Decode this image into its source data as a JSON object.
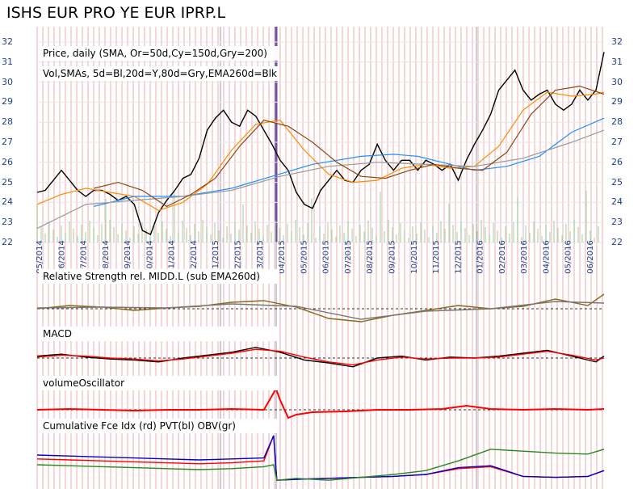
{
  "chart_data": [
    {
      "type": "line",
      "title": "ISHS EUR PRO YE EUR IPRP.L",
      "panel_label": "Price, daily (SMA, Or=50d,Cy=150d,Gry=200)",
      "volume_label": "Vol,SMAs, 5d=Bl,20d=Y,80d=Gry,EMA260d=Blk",
      "ylim": [
        22,
        32
      ],
      "yticks": [
        22,
        23,
        24,
        25,
        26,
        27,
        28,
        29,
        30,
        31,
        32
      ],
      "xtick_labels": [
        "05/2014",
        "06/2014",
        "07/2014",
        "08/2014",
        "09/2014",
        "10/2014",
        "11/2014",
        "12/2014",
        "01/2015",
        "02/2015",
        "03/2015",
        "04/2015",
        "05/2015",
        "06/2015",
        "07/2015",
        "08/2015",
        "09/2015",
        "10/2015",
        "11/2015",
        "12/2015",
        "01/2016",
        "02/2016",
        "03/2016",
        "04/2016",
        "05/2016",
        "06/2016"
      ],
      "series": [
        {
          "key": "price",
          "color": "#000000",
          "x": [
            0,
            10,
            20,
            30,
            40,
            50,
            60,
            70,
            80,
            90,
            100,
            110,
            120,
            130,
            140,
            150,
            160,
            170,
            180,
            190,
            200,
            210,
            220,
            230,
            240,
            250,
            260,
            270,
            280,
            290,
            300,
            310,
            320,
            330,
            340,
            350,
            360,
            370,
            380,
            390,
            400,
            410,
            420,
            430,
            440,
            450,
            460,
            470,
            480,
            490,
            500,
            510,
            520,
            530,
            540,
            550,
            560,
            570,
            580,
            590,
            600,
            610,
            620,
            630,
            640,
            650,
            660,
            670,
            680,
            690,
            700
          ],
          "y": [
            24.5,
            24.6,
            25.1,
            25.6,
            25.1,
            24.6,
            24.3,
            24.6,
            24.6,
            24.4,
            24.1,
            24.3,
            23.9,
            22.6,
            22.4,
            23.5,
            24.1,
            24.6,
            25.2,
            25.4,
            26.2,
            27.6,
            28.2,
            28.6,
            28.0,
            27.8,
            28.6,
            28.3,
            27.6,
            26.9,
            26.1,
            25.6,
            24.5,
            23.9,
            23.7,
            24.6,
            25.1,
            25.6,
            25.1,
            25.0,
            25.6,
            25.9,
            26.9,
            26.1,
            25.6,
            26.1,
            26.1,
            25.6,
            26.1,
            25.9,
            25.6,
            25.9,
            25.1,
            26.1,
            26.9,
            27.6,
            28.4,
            29.6,
            30.1,
            30.6,
            29.6,
            29.1,
            29.4,
            29.6,
            28.9,
            28.6,
            28.9,
            29.6,
            29.1,
            29.6,
            31.5
          ]
        },
        {
          "key": "sma50",
          "color": "#ff8c00",
          "x": [
            0,
            30,
            60,
            90,
            120,
            150,
            180,
            210,
            240,
            270,
            300,
            330,
            360,
            390,
            420,
            450,
            480,
            510,
            540,
            570,
            600,
            630,
            660,
            690,
            700
          ],
          "y": [
            23.9,
            24.4,
            24.7,
            24.5,
            24.3,
            23.6,
            24.0,
            24.9,
            26.6,
            27.9,
            28.1,
            26.6,
            25.4,
            25.0,
            25.1,
            25.7,
            25.9,
            25.7,
            25.8,
            26.8,
            28.6,
            29.5,
            29.3,
            29.4,
            29.5
          ]
        },
        {
          "key": "sma150",
          "color": "#1e90ff",
          "x": [
            70,
            120,
            180,
            240,
            290,
            340,
            400,
            440,
            470,
            500,
            540,
            580,
            620,
            660,
            700
          ],
          "y": [
            23.8,
            24.3,
            24.3,
            24.7,
            25.3,
            25.9,
            26.3,
            26.4,
            26.3,
            26.0,
            25.6,
            25.8,
            26.3,
            27.5,
            28.2
          ]
        },
        {
          "key": "sma200",
          "color": "#999999",
          "x": [
            0,
            60,
            120,
            180,
            240,
            300,
            360,
            420,
            480,
            540,
            600,
            660,
            700
          ],
          "y": [
            22.7,
            23.9,
            24.1,
            24.3,
            24.6,
            25.3,
            25.8,
            26.0,
            25.9,
            25.8,
            26.2,
            27.0,
            27.6
          ]
        },
        {
          "key": "sma_brown",
          "color": "#8b4513",
          "x": [
            70,
            100,
            130,
            160,
            190,
            220,
            250,
            280,
            310,
            340,
            370,
            400,
            430,
            460,
            490,
            520,
            550,
            580,
            610,
            640,
            670,
            700
          ],
          "y": [
            24.7,
            25.0,
            24.6,
            23.8,
            24.4,
            25.2,
            26.8,
            28.1,
            27.8,
            27.0,
            26.0,
            25.3,
            25.2,
            25.6,
            25.9,
            25.7,
            25.6,
            26.5,
            28.4,
            29.6,
            29.8,
            29.4
          ]
        }
      ]
    },
    {
      "type": "line",
      "title": "Relative Strength rel. MIDD.L (sub EMA260d)",
      "series": [
        {
          "key": "rs",
          "color": "#8b6914",
          "x": [
            0,
            40,
            80,
            120,
            160,
            200,
            240,
            280,
            320,
            360,
            400,
            440,
            480,
            520,
            560,
            600,
            640,
            680,
            700
          ],
          "y": [
            0.0,
            0.4,
            0.2,
            -0.2,
            0.1,
            0.3,
            0.8,
            1.0,
            0.2,
            -1.2,
            -1.6,
            -0.8,
            -0.2,
            0.4,
            0.0,
            0.3,
            1.2,
            0.4,
            1.8
          ]
        },
        {
          "key": "rs_avg",
          "color": "#777777",
          "x": [
            0,
            80,
            160,
            240,
            320,
            400,
            480,
            560,
            640,
            700
          ],
          "y": [
            0.1,
            0.2,
            0.1,
            0.6,
            0.3,
            -1.3,
            -0.3,
            0.0,
            0.9,
            0.7
          ]
        }
      ]
    },
    {
      "type": "line",
      "title": "MACD",
      "series": [
        {
          "key": "macd",
          "color": "#000000",
          "x": [
            0,
            30,
            60,
            90,
            120,
            150,
            180,
            210,
            240,
            270,
            300,
            330,
            360,
            390,
            420,
            450,
            480,
            510,
            540,
            570,
            600,
            630,
            660,
            690,
            700
          ],
          "y": [
            0.2,
            0.4,
            0.1,
            -0.1,
            -0.2,
            -0.4,
            0.0,
            0.3,
            0.6,
            1.1,
            0.6,
            -0.2,
            -0.5,
            -0.9,
            0.0,
            0.2,
            -0.2,
            0.1,
            0.0,
            0.2,
            0.5,
            0.8,
            0.2,
            -0.4,
            0.2
          ]
        },
        {
          "key": "signal",
          "color": "#ff0000",
          "x": [
            0,
            30,
            60,
            90,
            120,
            150,
            180,
            210,
            240,
            270,
            300,
            330,
            360,
            390,
            420,
            450,
            480,
            510,
            540,
            570,
            600,
            630,
            660,
            690,
            700
          ],
          "y": [
            0.1,
            0.3,
            0.2,
            0.0,
            -0.1,
            -0.3,
            -0.1,
            0.2,
            0.5,
            0.9,
            0.7,
            0.1,
            -0.4,
            -0.7,
            -0.2,
            0.1,
            -0.1,
            0.0,
            0.0,
            0.1,
            0.4,
            0.7,
            0.3,
            -0.2,
            0.0
          ]
        }
      ]
    },
    {
      "type": "line",
      "title": "volumeOscillator",
      "series": [
        {
          "key": "vo",
          "color": "#ff0000",
          "x": [
            0,
            40,
            80,
            120,
            160,
            200,
            240,
            280,
            295,
            300,
            310,
            320,
            340,
            380,
            420,
            460,
            500,
            530,
            560,
            600,
            640,
            680,
            700
          ],
          "y": [
            0.0,
            0.1,
            0.0,
            -0.1,
            0.0,
            0.0,
            0.1,
            0.0,
            2.6,
            1.2,
            -1.0,
            -0.6,
            -0.3,
            -0.2,
            0.0,
            0.0,
            0.1,
            0.5,
            0.1,
            0.0,
            0.1,
            0.0,
            0.1
          ]
        }
      ]
    },
    {
      "type": "line",
      "title": "Cumulative Fce Idx (rd) PVT(bl) OBV(gr)",
      "series": [
        {
          "key": "force",
          "color": "#ff0000",
          "x": [
            0,
            40,
            80,
            120,
            160,
            200,
            240,
            280,
            292,
            296,
            320,
            360,
            400,
            440,
            480,
            520,
            560,
            600,
            640,
            680,
            700
          ],
          "y": [
            0.6,
            0.5,
            0.4,
            0.3,
            0.2,
            0.1,
            0.2,
            0.4,
            3.0,
            -1.6,
            -1.5,
            -1.4,
            -1.3,
            -1.2,
            -1.0,
            -0.4,
            -0.2,
            -1.2,
            -1.3,
            -1.2,
            -0.6
          ]
        },
        {
          "key": "pvt",
          "color": "#0000cc",
          "x": [
            0,
            40,
            80,
            120,
            160,
            200,
            240,
            280,
            292,
            296,
            320,
            360,
            400,
            440,
            480,
            520,
            560,
            600,
            640,
            680,
            700
          ],
          "y": [
            1.0,
            0.9,
            0.8,
            0.7,
            0.6,
            0.5,
            0.6,
            0.7,
            3.0,
            -1.6,
            -1.5,
            -1.4,
            -1.3,
            -1.2,
            -1.0,
            -0.3,
            -0.1,
            -1.2,
            -1.3,
            -1.2,
            -0.6
          ]
        },
        {
          "key": "obv",
          "color": "#228b22",
          "x": [
            0,
            40,
            80,
            120,
            160,
            200,
            240,
            280,
            292,
            296,
            320,
            360,
            400,
            440,
            480,
            520,
            560,
            600,
            640,
            680,
            700
          ],
          "y": [
            0.0,
            -0.1,
            -0.2,
            -0.3,
            -0.4,
            -0.5,
            -0.4,
            -0.2,
            0.0,
            -1.6,
            -1.4,
            -1.6,
            -1.3,
            -1.0,
            -0.6,
            0.4,
            1.6,
            1.4,
            1.2,
            1.1,
            1.6
          ]
        }
      ]
    }
  ]
}
